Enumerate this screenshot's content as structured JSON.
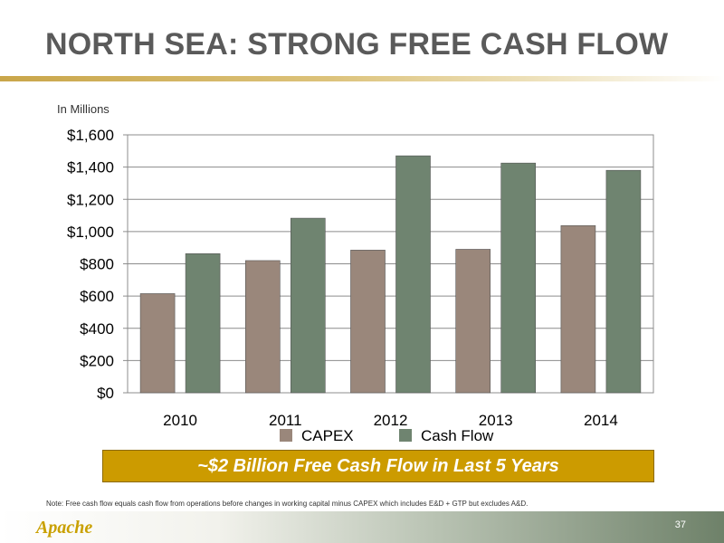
{
  "title": "NORTH SEA: STRONG FREE CASH FLOW",
  "units_label": "In Millions",
  "chart_data": {
    "type": "bar",
    "categories": [
      "2010",
      "2011",
      "2012",
      "2013",
      "2014"
    ],
    "series": [
      {
        "name": "CAPEX",
        "values": [
          615,
          820,
          885,
          890,
          1037
        ],
        "color": "#9a877b"
      },
      {
        "name": "Cash Flow",
        "values": [
          863,
          1083,
          1470,
          1425,
          1380
        ],
        "color": "#6f8470"
      }
    ],
    "ylim": [
      0,
      1600
    ],
    "yticks": [
      "$0",
      "$200",
      "$400",
      "$600",
      "$800",
      "$1,000",
      "$1,200",
      "$1,400",
      "$1,600"
    ],
    "grid": true,
    "legend": "bottom"
  },
  "callout": "~$2 Billion Free Cash Flow in Last 5 Years",
  "note": "Note: Free cash flow equals cash flow from operations before changes in working capital minus CAPEX which includes E&D + GTP but excludes A&D.",
  "logo": "Apache",
  "page_number": "37"
}
